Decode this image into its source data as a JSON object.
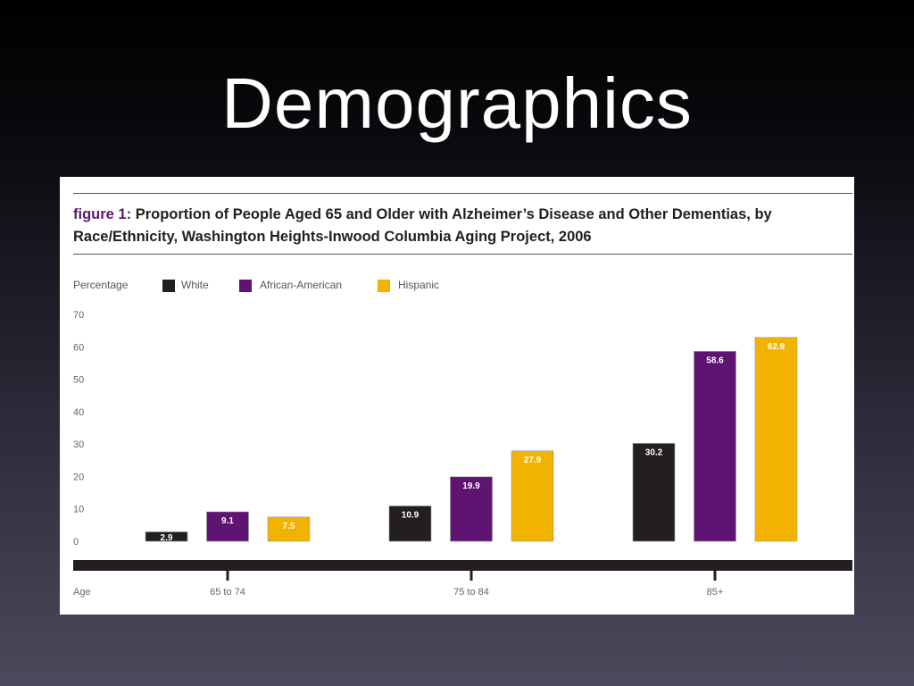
{
  "slide": {
    "title": "Demographics"
  },
  "figure": {
    "label": "figure 1:",
    "caption": "Proportion of People Aged 65 and Older with Alzheimer’s Disease and Other Dementias, by Race/Ethnicity, Washington Heights-Inwood Columbia Aging Project, 2006",
    "y_axis_caption": "Percentage",
    "x_axis_caption": "Age"
  },
  "chart_data": {
    "type": "bar",
    "title": "Proportion of People Aged 65 and Older with Alzheimer’s Disease and Other Dementias, by Race/Ethnicity, Washington Heights-Inwood Columbia Aging Project, 2006",
    "xlabel": "Age",
    "ylabel": "Percentage",
    "ylim": [
      0,
      70
    ],
    "yticks": [
      0,
      10,
      20,
      30,
      40,
      50,
      60,
      70
    ],
    "categories": [
      "65 to 74",
      "75 to 84",
      "85+"
    ],
    "series": [
      {
        "name": "White",
        "color": "#231f20",
        "values": [
          2.9,
          10.9,
          30.2
        ],
        "labels": [
          "2.9",
          "10.9",
          "30.2"
        ]
      },
      {
        "name": "African-American",
        "color": "#5f1472",
        "values": [
          9.1,
          19.9,
          58.6
        ],
        "labels": [
          "9.1",
          "19.9",
          "58.6"
        ]
      },
      {
        "name": "Hispanic",
        "color": "#f2b300",
        "values": [
          7.5,
          27.9,
          62.9
        ],
        "labels": [
          "7.5",
          "27.9",
          "62.9"
        ]
      }
    ],
    "legend_position": "top-left",
    "grid": false
  }
}
